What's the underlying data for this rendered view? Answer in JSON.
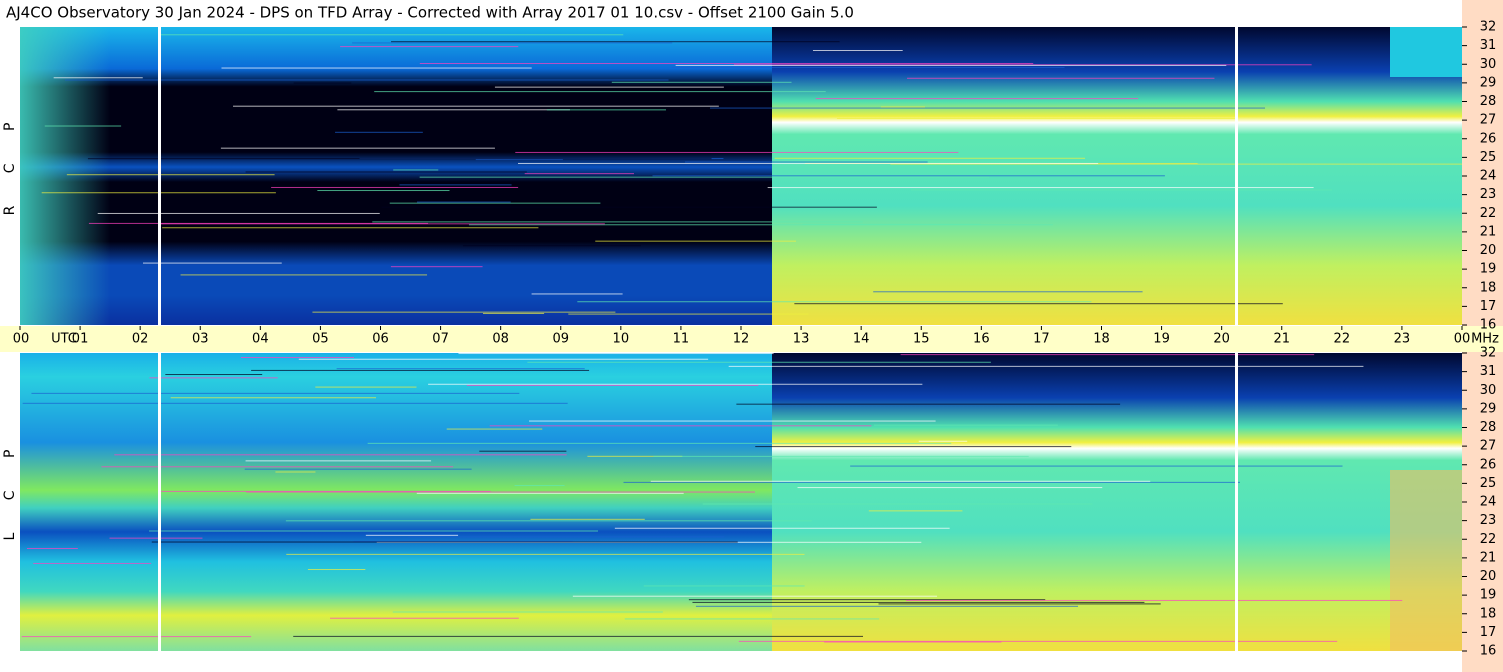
{
  "chart_data": {
    "type": "spectrogram",
    "title": "AJ4CO Observatory  30 Jan 2024  -  DPS on TFD Array  -  Corrected with Array 2017 01 10.csv  -  Offset 2100  Gain 5.0",
    "xlabel": "UTC",
    "ylabel": "MHz",
    "xlim": [
      0,
      24
    ],
    "xticks": [
      {
        "value": 0,
        "label": "00"
      },
      {
        "value": 1,
        "label": "01"
      },
      {
        "value": 2,
        "label": "02"
      },
      {
        "value": 3,
        "label": "03"
      },
      {
        "value": 4,
        "label": "04"
      },
      {
        "value": 5,
        "label": "05"
      },
      {
        "value": 6,
        "label": "06"
      },
      {
        "value": 7,
        "label": "07"
      },
      {
        "value": 8,
        "label": "08"
      },
      {
        "value": 9,
        "label": "09"
      },
      {
        "value": 10,
        "label": "10"
      },
      {
        "value": 11,
        "label": "11"
      },
      {
        "value": 12,
        "label": "12"
      },
      {
        "value": 13,
        "label": "13"
      },
      {
        "value": 14,
        "label": "14"
      },
      {
        "value": 15,
        "label": "15"
      },
      {
        "value": 16,
        "label": "16"
      },
      {
        "value": 17,
        "label": "17"
      },
      {
        "value": 18,
        "label": "18"
      },
      {
        "value": 19,
        "label": "19"
      },
      {
        "value": 20,
        "label": "20"
      },
      {
        "value": 21,
        "label": "21"
      },
      {
        "value": 22,
        "label": "22"
      },
      {
        "value": 23,
        "label": "23"
      },
      {
        "value": 24,
        "label": "00"
      }
    ],
    "ylim": [
      16,
      32
    ],
    "yticks": [
      16,
      17,
      18,
      19,
      20,
      21,
      22,
      23,
      24,
      25,
      26,
      27,
      28,
      29,
      30,
      31,
      32
    ],
    "panels": [
      {
        "name": "R C P"
      },
      {
        "name": "L C P"
      }
    ]
  }
}
